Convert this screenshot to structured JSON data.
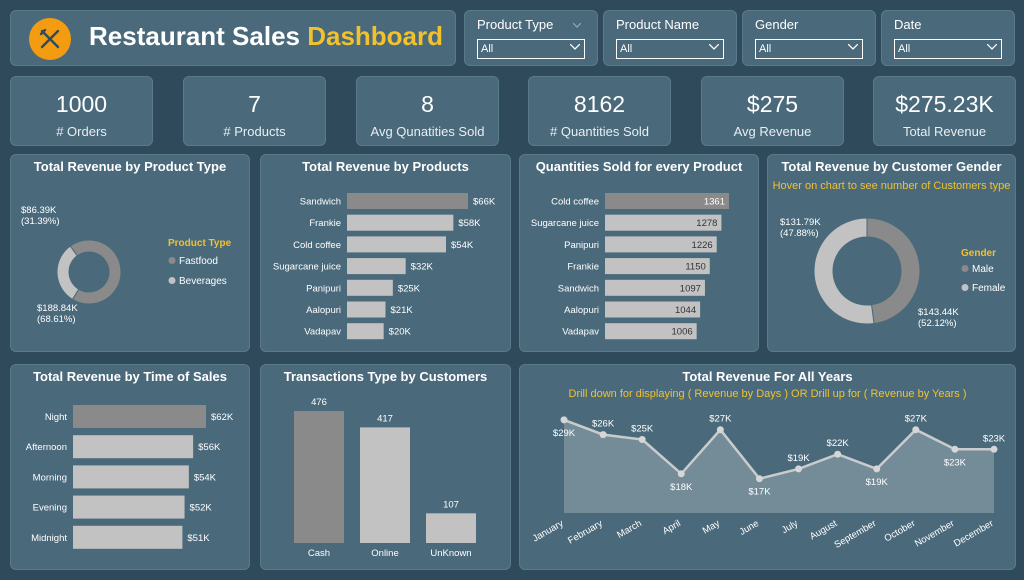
{
  "header": {
    "title_main": "Restaurant Sales",
    "title_highlight": "Dashboard",
    "logo_icon": "fork-knife-icon",
    "accent": "#f2c12e",
    "logo_color": "#f39c12"
  },
  "filters": [
    {
      "label": "Product Type",
      "value": "All"
    },
    {
      "label": "Product Name",
      "value": "All"
    },
    {
      "label": "Gender",
      "value": "All"
    },
    {
      "label": "Date",
      "value": "All"
    }
  ],
  "kpis": [
    {
      "value": "1000",
      "label": "# Orders"
    },
    {
      "value": "7",
      "label": "# Products"
    },
    {
      "value": "8",
      "label": "Avg Qunatities Sold"
    },
    {
      "value": "8162",
      "label": "# Quantities Sold"
    },
    {
      "value": "$275",
      "label": "Avg Revenue"
    },
    {
      "value": "$275.23K",
      "label": "Total Revenue"
    }
  ],
  "chart_data": [
    {
      "id": "rev_by_type",
      "type": "pie",
      "title": "Total Revenue by Product Type",
      "legend_title": "Product Type",
      "legend_position": "right",
      "categories": [
        "Fastfood",
        "Beverages"
      ],
      "values": [
        188.84,
        86.39
      ],
      "labels": [
        "$188.84K",
        "$86.39K"
      ],
      "percents": [
        "(68.61%)",
        "(31.39%)"
      ],
      "colors": [
        "#8a8a8a",
        "#c2c2c2"
      ]
    },
    {
      "id": "rev_by_product",
      "type": "bar",
      "orientation": "horizontal",
      "title": "Total Revenue by Products",
      "categories": [
        "Sandwich",
        "Frankie",
        "Cold coffee",
        "Sugarcane juice",
        "Panipuri",
        "Aalopuri",
        "Vadapav"
      ],
      "values": [
        66,
        58,
        54,
        32,
        25,
        21,
        20
      ],
      "labels": [
        "$66K",
        "$58K",
        "$54K",
        "$32K",
        "$25K",
        "$21K",
        "$20K"
      ]
    },
    {
      "id": "qty_by_product",
      "type": "bar",
      "orientation": "horizontal",
      "title": "Quantities Sold for every Product",
      "categories": [
        "Cold coffee",
        "Sugarcane juice",
        "Panipuri",
        "Frankie",
        "Sandwich",
        "Aalopuri",
        "Vadapav"
      ],
      "values": [
        1361,
        1278,
        1226,
        1150,
        1097,
        1044,
        1006
      ],
      "labels": [
        "1361",
        "1278",
        "1226",
        "1150",
        "1097",
        "1044",
        "1006"
      ]
    },
    {
      "id": "rev_by_gender",
      "type": "pie",
      "title": "Total Revenue by Customer Gender",
      "subtitle": "Hover on chart to see number of Customers type",
      "legend_title": "Gender",
      "legend_position": "right",
      "categories": [
        "Male",
        "Female"
      ],
      "values": [
        131.79,
        143.44
      ],
      "labels": [
        "$131.79K",
        "$143.44K"
      ],
      "percents": [
        "(47.88%)",
        "(52.12%)"
      ],
      "colors": [
        "#8a8a8a",
        "#c2c2c2"
      ]
    },
    {
      "id": "rev_by_time",
      "type": "bar",
      "orientation": "horizontal",
      "title": "Total Revenue by Time of Sales",
      "categories": [
        "Night",
        "Afternoon",
        "Morning",
        "Evening",
        "Midnight"
      ],
      "values": [
        62,
        56,
        54,
        52,
        51
      ],
      "labels": [
        "$62K",
        "$56K",
        "$54K",
        "$52K",
        "$51K"
      ]
    },
    {
      "id": "txn_type",
      "type": "bar",
      "orientation": "vertical",
      "title": "Transactions Type by Customers",
      "categories": [
        "Cash",
        "Online",
        "UnKnown"
      ],
      "values": [
        476,
        417,
        107
      ],
      "labels": [
        "476",
        "417",
        "107"
      ]
    },
    {
      "id": "rev_by_month",
      "type": "area",
      "title": "Total Revenue For All Years",
      "subtitle": "Drill down for displaying ( Revenue by Days ) OR Drill up for ( Revenue by Years )",
      "categories": [
        "January",
        "February",
        "March",
        "April",
        "May",
        "June",
        "July",
        "August",
        "September",
        "October",
        "November",
        "December"
      ],
      "values": [
        29,
        26,
        25,
        18,
        27,
        17,
        19,
        22,
        19,
        27,
        23,
        23
      ],
      "labels": [
        "$29K",
        "$26K",
        "$25K",
        "$18K",
        "$27K",
        "$17K",
        "$19K",
        "$22K",
        "$19K",
        "$27K",
        "$23K",
        "$23K"
      ]
    }
  ]
}
